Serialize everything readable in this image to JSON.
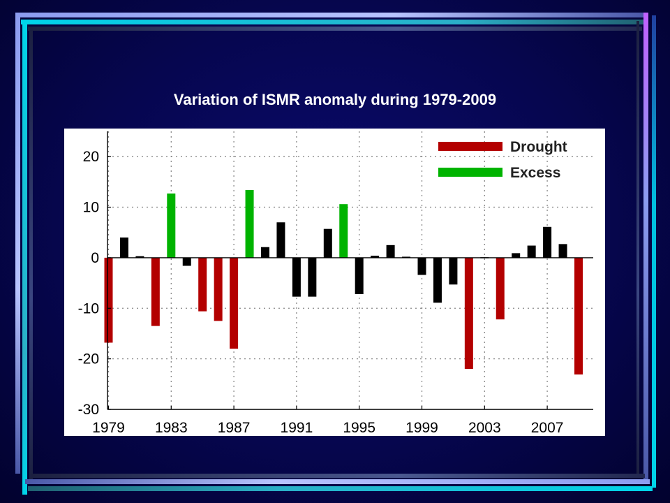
{
  "slide": {
    "title": "Variation of ISMR anomaly  during 1979-2009"
  },
  "colors": {
    "drought": "#b30000",
    "excess": "#00b300",
    "normal": "#000000",
    "frame_light": "#a0a8ff",
    "frame_cyan": "#00c8e0",
    "frame_dark": "#303860"
  },
  "chart_data": {
    "type": "bar",
    "title": "",
    "xlabel": "",
    "ylabel": "",
    "ylim": [
      -30,
      25
    ],
    "yticks": [
      20,
      10,
      0,
      -10,
      -20,
      -30
    ],
    "xticks": [
      1979,
      1983,
      1987,
      1991,
      1995,
      1999,
      2003,
      2007
    ],
    "grid": true,
    "legend_position": "top-right",
    "legend": [
      {
        "name": "Drought",
        "category": "drought"
      },
      {
        "name": "Excess",
        "category": "excess"
      }
    ],
    "bars": [
      {
        "year": 1979,
        "value": -16.8,
        "category": "drought"
      },
      {
        "year": 1980,
        "value": 4.0,
        "category": "normal"
      },
      {
        "year": 1981,
        "value": 0.3,
        "category": "normal"
      },
      {
        "year": 1982,
        "value": -13.5,
        "category": "drought"
      },
      {
        "year": 1983,
        "value": 12.7,
        "category": "excess"
      },
      {
        "year": 1984,
        "value": -1.6,
        "category": "normal"
      },
      {
        "year": 1985,
        "value": -10.6,
        "category": "drought"
      },
      {
        "year": 1986,
        "value": -12.5,
        "category": "drought"
      },
      {
        "year": 1987,
        "value": -18.0,
        "category": "drought"
      },
      {
        "year": 1988,
        "value": 13.4,
        "category": "excess"
      },
      {
        "year": 1989,
        "value": 2.1,
        "category": "normal"
      },
      {
        "year": 1990,
        "value": 7.0,
        "category": "normal"
      },
      {
        "year": 1991,
        "value": -7.7,
        "category": "normal"
      },
      {
        "year": 1992,
        "value": -7.7,
        "category": "normal"
      },
      {
        "year": 1993,
        "value": 5.7,
        "category": "normal"
      },
      {
        "year": 1994,
        "value": 10.6,
        "category": "excess"
      },
      {
        "year": 1995,
        "value": -7.2,
        "category": "normal"
      },
      {
        "year": 1996,
        "value": 0.4,
        "category": "normal"
      },
      {
        "year": 1997,
        "value": 2.5,
        "category": "normal"
      },
      {
        "year": 1998,
        "value": 0.2,
        "category": "normal"
      },
      {
        "year": 1999,
        "value": -3.4,
        "category": "normal"
      },
      {
        "year": 2000,
        "value": -8.9,
        "category": "normal"
      },
      {
        "year": 2001,
        "value": -5.3,
        "category": "normal"
      },
      {
        "year": 2002,
        "value": -22.0,
        "category": "drought"
      },
      {
        "year": 2003,
        "value": 0.1,
        "category": "normal"
      },
      {
        "year": 2004,
        "value": -12.2,
        "category": "drought"
      },
      {
        "year": 2005,
        "value": 0.9,
        "category": "normal"
      },
      {
        "year": 2006,
        "value": 2.4,
        "category": "normal"
      },
      {
        "year": 2007,
        "value": 6.1,
        "category": "normal"
      },
      {
        "year": 2008,
        "value": 2.7,
        "category": "normal"
      },
      {
        "year": 2009,
        "value": -23.1,
        "category": "drought"
      }
    ]
  }
}
